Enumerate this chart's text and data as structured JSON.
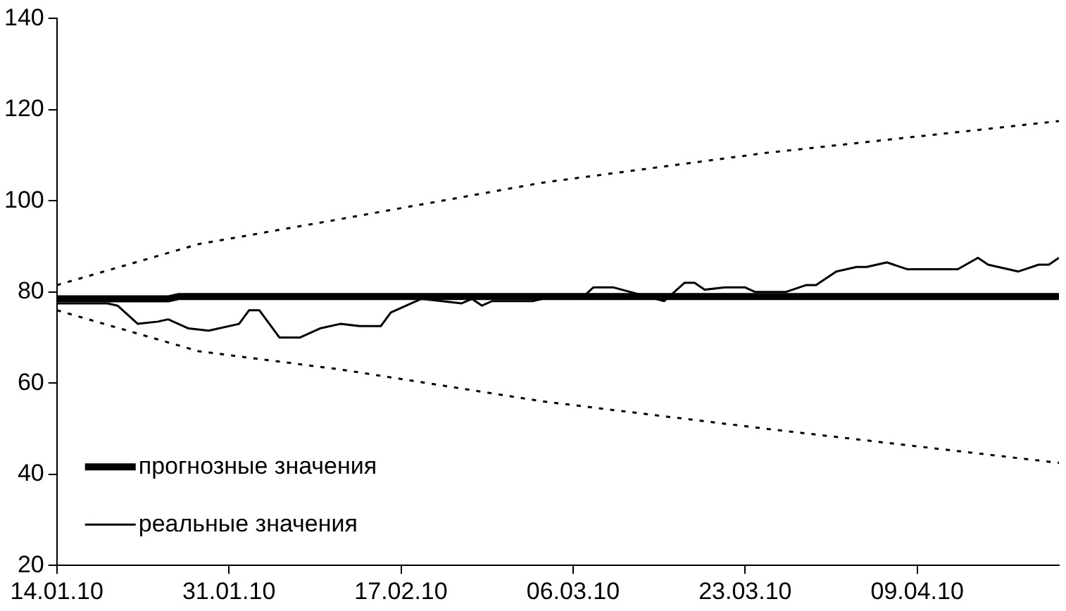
{
  "chart_data": {
    "type": "line",
    "xlim": [
      "2010-01-14",
      "2010-04-23"
    ],
    "xticks": [
      {
        "value": "2010-01-14",
        "label": "14.01.10"
      },
      {
        "value": "2010-01-31",
        "label": "31.01.10"
      },
      {
        "value": "2010-02-17",
        "label": "17.02.10"
      },
      {
        "value": "2010-03-06",
        "label": "06.03.10"
      },
      {
        "value": "2010-03-23",
        "label": "23.03.10"
      },
      {
        "value": "2010-04-09",
        "label": "09.04.10"
      }
    ],
    "ylim": [
      20,
      140
    ],
    "yticks": [
      20,
      40,
      60,
      80,
      100,
      120,
      140
    ],
    "grid": false,
    "legend": "bottom left",
    "series": [
      {
        "name": "прогнозные значения",
        "color": "#000000",
        "x": [
          "2010-01-14",
          "2010-01-25",
          "2010-01-26",
          "2010-04-23"
        ],
        "values": [
          78.5,
          78.5,
          79,
          79
        ]
      },
      {
        "name": "реальные значения",
        "color": "#000000",
        "x": [
          "2010-01-14",
          "2010-01-19",
          "2010-01-20",
          "2010-01-22",
          "2010-01-24",
          "2010-01-25",
          "2010-01-27",
          "2010-01-29",
          "2010-02-01",
          "2010-02-02",
          "2010-02-03",
          "2010-02-05",
          "2010-02-07",
          "2010-02-09",
          "2010-02-11",
          "2010-02-13",
          "2010-02-15",
          "2010-02-16",
          "2010-02-19",
          "2010-02-23",
          "2010-02-24",
          "2010-02-25",
          "2010-02-26",
          "2010-03-02",
          "2010-03-03",
          "2010-03-07",
          "2010-03-08",
          "2010-03-10",
          "2010-03-15",
          "2010-03-17",
          "2010-03-18",
          "2010-03-19",
          "2010-03-21",
          "2010-03-23",
          "2010-03-24",
          "2010-03-27",
          "2010-03-29",
          "2010-03-30",
          "2010-04-01",
          "2010-04-03",
          "2010-04-04",
          "2010-04-06",
          "2010-04-08",
          "2010-04-13",
          "2010-04-15",
          "2010-04-16",
          "2010-04-19",
          "2010-04-21",
          "2010-04-22",
          "2010-04-23"
        ],
        "values": [
          77.5,
          77.5,
          77,
          73,
          73.5,
          74,
          72,
          71.5,
          73,
          76,
          76,
          70,
          70,
          72,
          73,
          72.5,
          72.5,
          75.5,
          78.5,
          77.5,
          78.5,
          77,
          78,
          78,
          78.5,
          79,
          81,
          81,
          78,
          82,
          82,
          80.5,
          81,
          81,
          80,
          80,
          81.5,
          81.5,
          84.5,
          85.5,
          85.5,
          86.5,
          85,
          85,
          87.5,
          86,
          84.5,
          86,
          86,
          87.5
        ]
      },
      {
        "color": "#000000",
        "line_style": "dashed",
        "x": [
          "2010-01-14",
          "2010-01-28",
          "2010-02-11",
          "2010-03-03",
          "2010-03-25",
          "2010-04-23"
        ],
        "values": [
          81.5,
          90.5,
          96,
          104,
          110.5,
          117.5
        ]
      },
      {
        "color": "#000000",
        "line_style": "dashed",
        "x": [
          "2010-01-14",
          "2010-01-28",
          "2010-02-11",
          "2010-03-03",
          "2010-03-25",
          "2010-04-23"
        ],
        "values": [
          76,
          67,
          63,
          56,
          50,
          42.5
        ]
      }
    ]
  }
}
